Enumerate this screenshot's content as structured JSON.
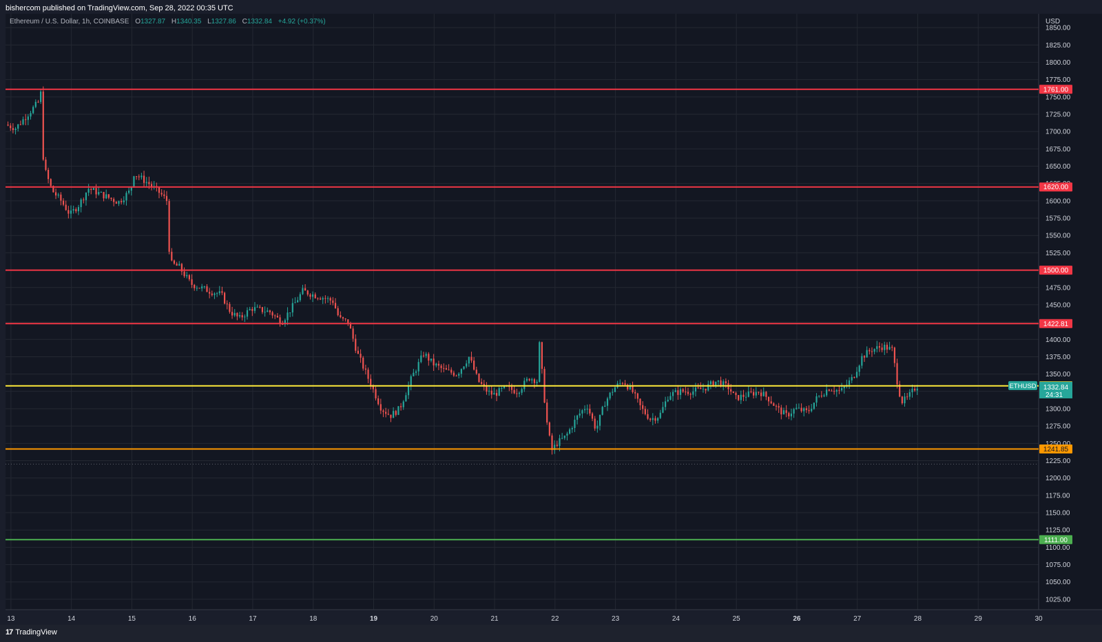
{
  "header": {
    "published": "bishercom published on TradingView.com, Sep 28, 2022 00:35 UTC"
  },
  "legend": {
    "symbol": "Ethereum / U.S. Dollar, 1h, COINBASE",
    "o_label": "O",
    "o": "1327.87",
    "h_label": "H",
    "h": "1340.35",
    "l_label": "L",
    "l": "1327.86",
    "c_label": "C",
    "c": "1332.84",
    "change": "+4.92 (+0.37%)"
  },
  "footer": {
    "logo_text": "TradingView",
    "logo_mark": "17"
  },
  "colors": {
    "background": "#131722",
    "grid": "#242832",
    "up": "#26a69a",
    "down": "#ef5350",
    "red_line": "#f23645",
    "yellow_line": "#ffeb3b",
    "orange_line": "#ff9800",
    "green_line": "#4caf50"
  },
  "chart_data": {
    "type": "candlestick",
    "currency": "USD",
    "grid": true,
    "ylim": [
      1010,
      1870
    ],
    "y_ticks": [
      1025,
      1050,
      1075,
      1100,
      1125,
      1150,
      1175,
      1200,
      1225,
      1250,
      1275,
      1300,
      1325,
      1350,
      1375,
      1400,
      1425,
      1450,
      1475,
      1500,
      1525,
      1550,
      1575,
      1600,
      1625,
      1650,
      1675,
      1700,
      1725,
      1750,
      1775,
      1800,
      1825,
      1850
    ],
    "y_tick_labels": [
      "1025.00",
      "1050.00",
      "1075.00",
      "1100.00",
      "1125.00",
      "1150.00",
      "1175.00",
      "1200.00",
      "1225.00",
      "1250.00",
      "1275.00",
      "1300.00",
      "1325.00",
      "1350.00",
      "1375.00",
      "1400.00",
      "1425.00",
      "1450.00",
      "1475.00",
      "1500.00",
      "1525.00",
      "1550.00",
      "1575.00",
      "1600.00",
      "1625.00",
      "1650.00",
      "1675.00",
      "1700.00",
      "1725.00",
      "1750.00",
      "1775.00",
      "1800.00",
      "1825.00",
      "1850.00"
    ],
    "x_range_days": [
      12.91,
      30.0
    ],
    "x_ticks": [
      {
        "day": 13,
        "label": "13",
        "bold": false
      },
      {
        "day": 14,
        "label": "14",
        "bold": false
      },
      {
        "day": 15,
        "label": "15",
        "bold": false
      },
      {
        "day": 16,
        "label": "16",
        "bold": false
      },
      {
        "day": 17,
        "label": "17",
        "bold": false
      },
      {
        "day": 18,
        "label": "18",
        "bold": false
      },
      {
        "day": 19,
        "label": "19",
        "bold": true
      },
      {
        "day": 20,
        "label": "20",
        "bold": false
      },
      {
        "day": 21,
        "label": "21",
        "bold": false
      },
      {
        "day": 22,
        "label": "22",
        "bold": false
      },
      {
        "day": 23,
        "label": "23",
        "bold": false
      },
      {
        "day": 24,
        "label": "24",
        "bold": false
      },
      {
        "day": 25,
        "label": "25",
        "bold": false
      },
      {
        "day": 26,
        "label": "26",
        "bold": true
      },
      {
        "day": 27,
        "label": "27",
        "bold": false
      },
      {
        "day": 28,
        "label": "28",
        "bold": false
      },
      {
        "day": 29,
        "label": "29",
        "bold": false
      },
      {
        "day": 30,
        "label": "30",
        "bold": false
      }
    ],
    "horizontal_levels": [
      {
        "value": 1761.0,
        "label": "1761.00",
        "color": "#f23645"
      },
      {
        "value": 1620.0,
        "label": "1620.00",
        "color": "#f23645"
      },
      {
        "value": 1500.0,
        "label": "1500.00",
        "color": "#f23645"
      },
      {
        "value": 1422.81,
        "label": "1422.81",
        "color": "#f23645"
      },
      {
        "value": 1333.0,
        "label": "1333.00",
        "color": "#ffeb3b"
      },
      {
        "value": 1241.85,
        "label": "1241.85",
        "color": "#ff9800"
      },
      {
        "value": 1111.0,
        "label": "1111.00",
        "color": "#4caf50"
      }
    ],
    "last_price": {
      "symbol": "ETHUSD",
      "value": 1332.84,
      "label": "1332.84",
      "countdown": "24:31"
    },
    "dotted_level": 1220,
    "price_path": [
      [
        12.93,
        1710
      ],
      [
        13.1,
        1705
      ],
      [
        13.3,
        1725
      ],
      [
        13.5,
        1745
      ],
      [
        13.52,
        1760
      ],
      [
        13.56,
        1650
      ],
      [
        13.7,
        1615
      ],
      [
        13.85,
        1600
      ],
      [
        14.0,
        1580
      ],
      [
        14.15,
        1595
      ],
      [
        14.3,
        1618
      ],
      [
        14.5,
        1610
      ],
      [
        14.8,
        1598
      ],
      [
        15.0,
        1615
      ],
      [
        15.05,
        1640
      ],
      [
        15.3,
        1625
      ],
      [
        15.5,
        1610
      ],
      [
        15.6,
        1600
      ],
      [
        15.65,
        1510
      ],
      [
        15.8,
        1505
      ],
      [
        16.0,
        1480
      ],
      [
        16.3,
        1470
      ],
      [
        16.5,
        1465
      ],
      [
        16.65,
        1440
      ],
      [
        16.8,
        1430
      ],
      [
        17.0,
        1445
      ],
      [
        17.3,
        1440
      ],
      [
        17.5,
        1425
      ],
      [
        17.7,
        1450
      ],
      [
        17.85,
        1470
      ],
      [
        18.0,
        1465
      ],
      [
        18.2,
        1460
      ],
      [
        18.35,
        1455
      ],
      [
        18.45,
        1430
      ],
      [
        18.6,
        1425
      ],
      [
        18.75,
        1380
      ],
      [
        18.9,
        1350
      ],
      [
        19.05,
        1320
      ],
      [
        19.15,
        1300
      ],
      [
        19.3,
        1290
      ],
      [
        19.45,
        1300
      ],
      [
        19.65,
        1345
      ],
      [
        19.85,
        1380
      ],
      [
        20.0,
        1365
      ],
      [
        20.2,
        1355
      ],
      [
        20.4,
        1350
      ],
      [
        20.6,
        1375
      ],
      [
        20.75,
        1340
      ],
      [
        20.9,
        1325
      ],
      [
        21.0,
        1320
      ],
      [
        21.2,
        1330
      ],
      [
        21.4,
        1325
      ],
      [
        21.6,
        1345
      ],
      [
        21.73,
        1340
      ],
      [
        21.75,
        1405
      ],
      [
        21.85,
        1310
      ],
      [
        21.9,
        1270
      ],
      [
        21.97,
        1240
      ],
      [
        22.05,
        1250
      ],
      [
        22.2,
        1260
      ],
      [
        22.4,
        1290
      ],
      [
        22.55,
        1305
      ],
      [
        22.7,
        1270
      ],
      [
        22.85,
        1310
      ],
      [
        23.0,
        1330
      ],
      [
        23.15,
        1340
      ],
      [
        23.3,
        1325
      ],
      [
        23.45,
        1300
      ],
      [
        23.6,
        1285
      ],
      [
        23.75,
        1290
      ],
      [
        23.9,
        1320
      ],
      [
        24.1,
        1325
      ],
      [
        24.3,
        1325
      ],
      [
        24.5,
        1330
      ],
      [
        24.7,
        1340
      ],
      [
        24.9,
        1330
      ],
      [
        25.0,
        1315
      ],
      [
        25.2,
        1320
      ],
      [
        25.4,
        1325
      ],
      [
        25.55,
        1315
      ],
      [
        25.7,
        1300
      ],
      [
        25.85,
        1290
      ],
      [
        26.0,
        1300
      ],
      [
        26.2,
        1295
      ],
      [
        26.35,
        1315
      ],
      [
        26.55,
        1330
      ],
      [
        26.75,
        1325
      ],
      [
        26.95,
        1345
      ],
      [
        27.1,
        1375
      ],
      [
        27.25,
        1385
      ],
      [
        27.45,
        1390
      ],
      [
        27.6,
        1385
      ],
      [
        27.68,
        1340
      ],
      [
        27.75,
        1310
      ],
      [
        27.85,
        1315
      ],
      [
        28.0,
        1332.84
      ]
    ]
  }
}
